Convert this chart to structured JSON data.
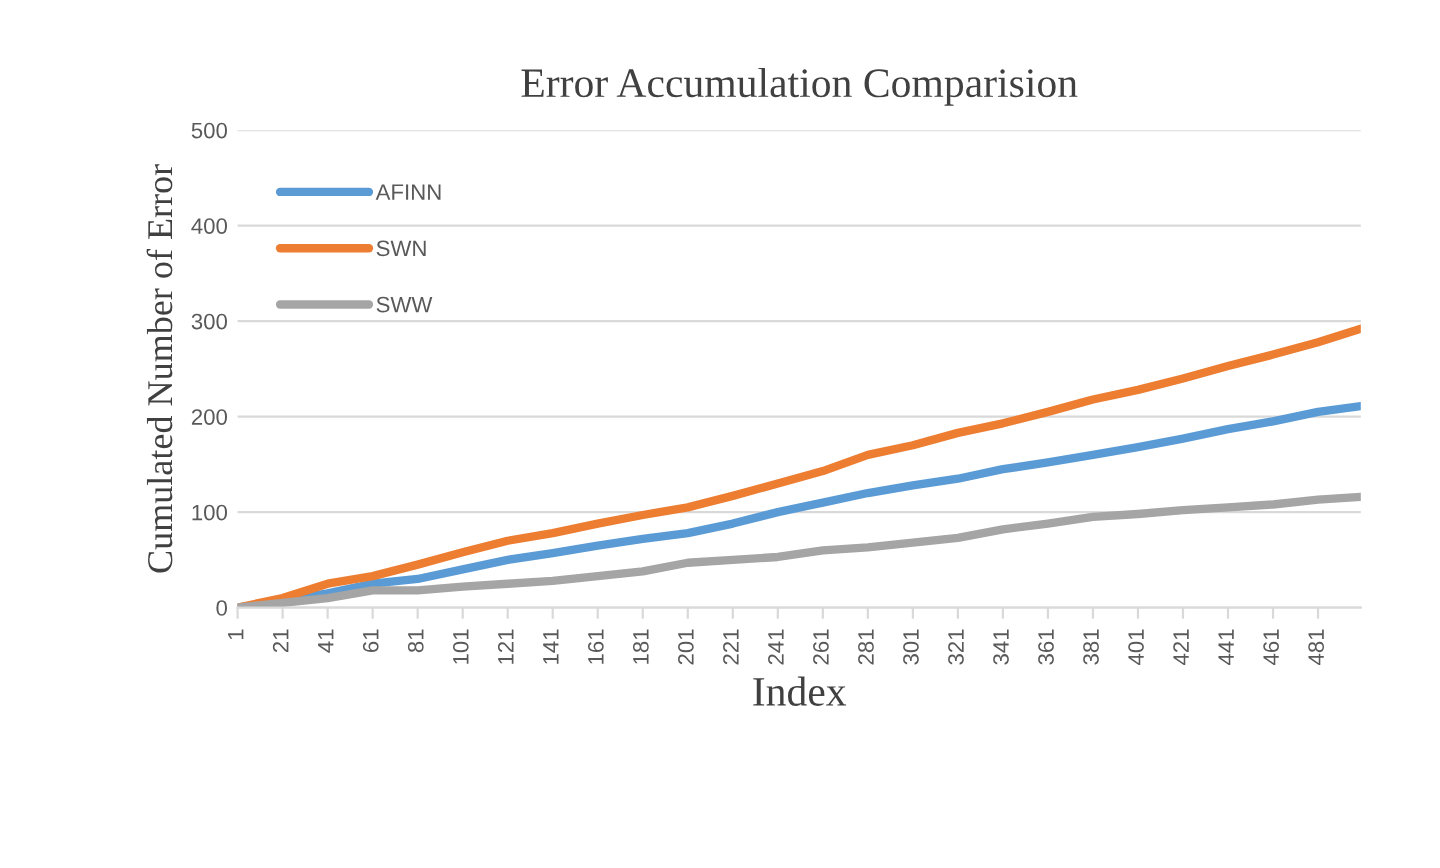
{
  "chart_data": {
    "type": "line",
    "title": "Error Accumulation Comparision",
    "xlabel": "Index",
    "ylabel": "Cumulated Number of Error",
    "x": [
      1,
      21,
      41,
      61,
      81,
      101,
      121,
      141,
      161,
      181,
      201,
      221,
      241,
      261,
      281,
      301,
      321,
      341,
      361,
      381,
      401,
      421,
      441,
      461,
      481,
      500
    ],
    "series": [
      {
        "name": "AFINN",
        "color": "#5b9bd5",
        "values": [
          0,
          7,
          15,
          25,
          30,
          40,
          50,
          57,
          65,
          72,
          78,
          88,
          100,
          110,
          120,
          128,
          135,
          145,
          152,
          160,
          168,
          177,
          187,
          195,
          205,
          211
        ]
      },
      {
        "name": "SWN",
        "color": "#ed7d31",
        "values": [
          0,
          10,
          25,
          33,
          45,
          58,
          70,
          78,
          88,
          97,
          105,
          117,
          130,
          143,
          160,
          170,
          183,
          193,
          205,
          218,
          228,
          240,
          253,
          265,
          278,
          292
        ]
      },
      {
        "name": "SWW",
        "color": "#a5a5a5",
        "values": [
          0,
          5,
          10,
          18,
          18,
          22,
          25,
          28,
          33,
          38,
          47,
          50,
          53,
          60,
          63,
          68,
          73,
          82,
          88,
          95,
          98,
          102,
          105,
          108,
          113,
          116
        ]
      }
    ],
    "xlim": [
      1,
      500
    ],
    "xticks": [
      1,
      21,
      41,
      61,
      81,
      101,
      121,
      141,
      161,
      181,
      201,
      221,
      241,
      261,
      281,
      301,
      321,
      341,
      361,
      381,
      401,
      421,
      441,
      461,
      481
    ],
    "ylim": [
      0,
      500
    ],
    "yticks": [
      0,
      100,
      200,
      300,
      400,
      500
    ],
    "grid": "y",
    "legend": "top left",
    "marker": "none",
    "line_style": "solid"
  }
}
